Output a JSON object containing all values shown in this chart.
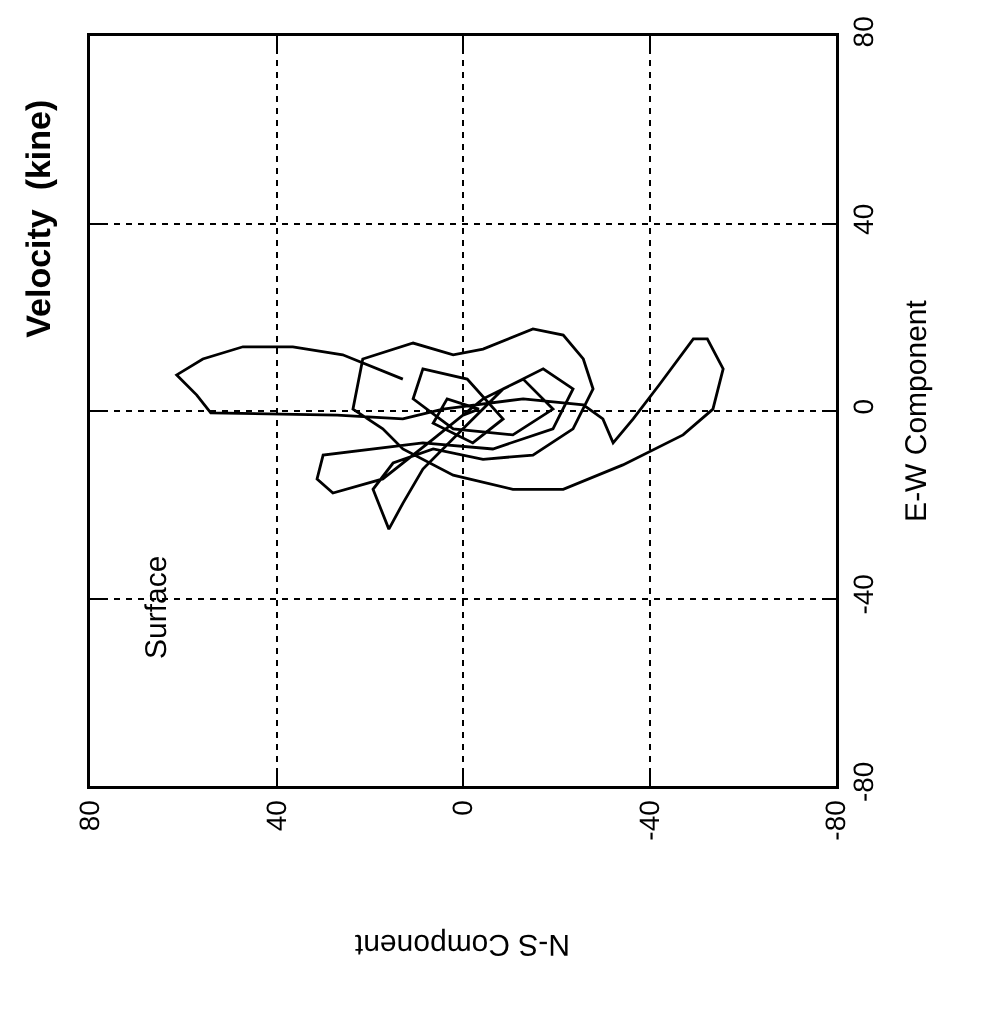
{
  "chart_data": {
    "type": "line",
    "title": "Velocity  (kine)",
    "xlabel": "N-S Component",
    "ylabel": "E-W Component",
    "annotations": [
      "Surface"
    ],
    "x": [
      12.9,
      25.8,
      36.5,
      47.2,
      55.8,
      61.4,
      57.1,
      54.1,
      27.0,
      12.9,
      4.3,
      -12.9,
      -25.8,
      -30.0,
      -32.2,
      -36.5,
      -42.1,
      -49.4,
      -52.4,
      -55.8,
      -53.6,
      -47.2,
      -34.3,
      -21.5,
      -10.7,
      2.1,
      12.9,
      17.2,
      23.6,
      21.5,
      10.7,
      2.1,
      -4.3,
      -15.0,
      -21.5,
      -25.8,
      -27.9,
      -23.6,
      -15.0,
      -4.3,
      6.4,
      15.0,
      19.3,
      15.9,
      12.9,
      8.6,
      0,
      -8.6,
      -17.2,
      -23.6,
      -19.3,
      -6.4,
      8.6,
      30.0,
      31.3,
      27.9,
      17.2,
      6.4,
      -4.3,
      -12.9,
      -19.3,
      -10.7,
      2.1,
      10.7,
      8.6,
      -0.9,
      -8.6,
      -2.1,
      6.4,
      3.4,
      -3.4,
      0
    ],
    "series": [
      {
        "color": "#000000",
        "values": [
          6.8,
          12.0,
          13.7,
          13.7,
          11.1,
          7.7,
          3.4,
          -0.4,
          -0.9,
          -1.7,
          0.4,
          2.6,
          1.3,
          -1.7,
          -6.8,
          -1.7,
          5.6,
          15.4,
          15.4,
          9.0,
          0.4,
          -5.1,
          -11.5,
          -16.7,
          -16.7,
          -13.7,
          -8.1,
          -3.8,
          0.4,
          11.1,
          14.5,
          12.0,
          13.2,
          17.5,
          16.2,
          11.1,
          4.7,
          -3.8,
          -9.4,
          -10.3,
          -8.1,
          -11.1,
          -16.7,
          -25.2,
          -19.7,
          -12.4,
          -3.8,
          4.7,
          9.0,
          4.7,
          -3.8,
          -8.1,
          -6.8,
          -9.4,
          -14.5,
          -17.5,
          -14.5,
          -6.0,
          2.6,
          6.8,
          0.4,
          -5.1,
          -3.8,
          2.6,
          9.0,
          6.8,
          -1.7,
          -6.8,
          -2.6,
          2.6,
          0.4,
          -0.9
        ]
      }
    ],
    "xlim": [
      80,
      -80
    ],
    "ylim": [
      -80,
      80
    ],
    "xticks": [
      80,
      40,
      0,
      -40,
      -80
    ],
    "yticks": [
      -80,
      -40,
      0,
      40,
      80
    ],
    "grid": true
  }
}
